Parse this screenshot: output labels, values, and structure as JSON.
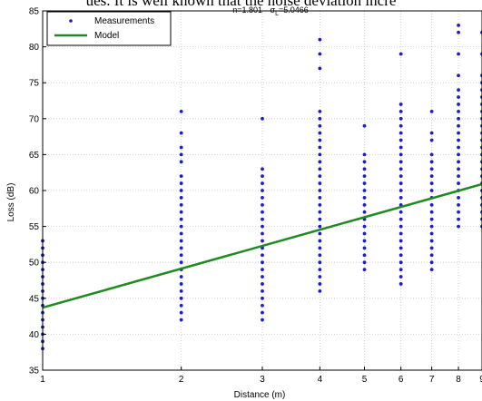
{
  "page_header_fragment": "ues. It is well known that the noise deviation incre",
  "colors": {
    "measurements": "#1c1cc8",
    "model": "#1f8a1f",
    "grid": "#c8c8c8",
    "axis": "#000000"
  },
  "chart_data": {
    "type": "scatter",
    "title": "n=1.801  σL=5.0466",
    "title_n": "n=1.801",
    "title_sigma": "σ",
    "title_sigma_sub": "L",
    "title_sigma_val": "=5.0466",
    "xlabel": "Distance (m)",
    "ylabel": "Loss (dB)",
    "xscale": "log",
    "xlim": [
      1,
      9
    ],
    "ylim": [
      35,
      85
    ],
    "xticks": [
      1,
      2,
      3,
      4,
      5,
      6,
      7,
      8,
      9
    ],
    "yticks": [
      35,
      40,
      45,
      50,
      55,
      60,
      65,
      70,
      75,
      80,
      85
    ],
    "grid": true,
    "legend_position": "top-left",
    "series": [
      {
        "name": "Measurements",
        "kind": "points",
        "points": [
          [
            1,
            38
          ],
          [
            1,
            39
          ],
          [
            1,
            40
          ],
          [
            1,
            41
          ],
          [
            1,
            42
          ],
          [
            1,
            43
          ],
          [
            1,
            44
          ],
          [
            1,
            45
          ],
          [
            1,
            46
          ],
          [
            1,
            47
          ],
          [
            1,
            48
          ],
          [
            1,
            49
          ],
          [
            1,
            50
          ],
          [
            1,
            51
          ],
          [
            1,
            52
          ],
          [
            1,
            53
          ],
          [
            2,
            42
          ],
          [
            2,
            43
          ],
          [
            2,
            44
          ],
          [
            2,
            45
          ],
          [
            2,
            46
          ],
          [
            2,
            47
          ],
          [
            2,
            48
          ],
          [
            2,
            49
          ],
          [
            2,
            50
          ],
          [
            2,
            51
          ],
          [
            2,
            52
          ],
          [
            2,
            53
          ],
          [
            2,
            54
          ],
          [
            2,
            55
          ],
          [
            2,
            56
          ],
          [
            2,
            57
          ],
          [
            2,
            58
          ],
          [
            2,
            59
          ],
          [
            2,
            60
          ],
          [
            2,
            61
          ],
          [
            2,
            62
          ],
          [
            2,
            64
          ],
          [
            2,
            65
          ],
          [
            2,
            66
          ],
          [
            2,
            68
          ],
          [
            2,
            71
          ],
          [
            3,
            42
          ],
          [
            3,
            43
          ],
          [
            3,
            44
          ],
          [
            3,
            45
          ],
          [
            3,
            46
          ],
          [
            3,
            47
          ],
          [
            3,
            48
          ],
          [
            3,
            49
          ],
          [
            3,
            50
          ],
          [
            3,
            51
          ],
          [
            3,
            52
          ],
          [
            3,
            53
          ],
          [
            3,
            54
          ],
          [
            3,
            55
          ],
          [
            3,
            56
          ],
          [
            3,
            57
          ],
          [
            3,
            58
          ],
          [
            3,
            59
          ],
          [
            3,
            60
          ],
          [
            3,
            61
          ],
          [
            3,
            62
          ],
          [
            3,
            63
          ],
          [
            3,
            70
          ],
          [
            4,
            46
          ],
          [
            4,
            47
          ],
          [
            4,
            48
          ],
          [
            4,
            49
          ],
          [
            4,
            50
          ],
          [
            4,
            51
          ],
          [
            4,
            52
          ],
          [
            4,
            53
          ],
          [
            4,
            54
          ],
          [
            4,
            55
          ],
          [
            4,
            56
          ],
          [
            4,
            57
          ],
          [
            4,
            58
          ],
          [
            4,
            59
          ],
          [
            4,
            60
          ],
          [
            4,
            61
          ],
          [
            4,
            62
          ],
          [
            4,
            63
          ],
          [
            4,
            64
          ],
          [
            4,
            65
          ],
          [
            4,
            66
          ],
          [
            4,
            67
          ],
          [
            4,
            68
          ],
          [
            4,
            69
          ],
          [
            4,
            70
          ],
          [
            4,
            71
          ],
          [
            4,
            77
          ],
          [
            4,
            79
          ],
          [
            4,
            81
          ],
          [
            5,
            49
          ],
          [
            5,
            50
          ],
          [
            5,
            51
          ],
          [
            5,
            52
          ],
          [
            5,
            53
          ],
          [
            5,
            54
          ],
          [
            5,
            55
          ],
          [
            5,
            56
          ],
          [
            5,
            57
          ],
          [
            5,
            58
          ],
          [
            5,
            59
          ],
          [
            5,
            60
          ],
          [
            5,
            61
          ],
          [
            5,
            62
          ],
          [
            5,
            63
          ],
          [
            5,
            64
          ],
          [
            5,
            65
          ],
          [
            5,
            69
          ],
          [
            6,
            47
          ],
          [
            6,
            48
          ],
          [
            6,
            49
          ],
          [
            6,
            50
          ],
          [
            6,
            51
          ],
          [
            6,
            52
          ],
          [
            6,
            53
          ],
          [
            6,
            54
          ],
          [
            6,
            55
          ],
          [
            6,
            56
          ],
          [
            6,
            57
          ],
          [
            6,
            58
          ],
          [
            6,
            59
          ],
          [
            6,
            60
          ],
          [
            6,
            61
          ],
          [
            6,
            62
          ],
          [
            6,
            63
          ],
          [
            6,
            64
          ],
          [
            6,
            65
          ],
          [
            6,
            66
          ],
          [
            6,
            67
          ],
          [
            6,
            68
          ],
          [
            6,
            69
          ],
          [
            6,
            70
          ],
          [
            6,
            71
          ],
          [
            6,
            72
          ],
          [
            6,
            79
          ],
          [
            7,
            49
          ],
          [
            7,
            50
          ],
          [
            7,
            51
          ],
          [
            7,
            52
          ],
          [
            7,
            53
          ],
          [
            7,
            54
          ],
          [
            7,
            55
          ],
          [
            7,
            56
          ],
          [
            7,
            57
          ],
          [
            7,
            58
          ],
          [
            7,
            59
          ],
          [
            7,
            60
          ],
          [
            7,
            61
          ],
          [
            7,
            62
          ],
          [
            7,
            63
          ],
          [
            7,
            64
          ],
          [
            7,
            65
          ],
          [
            7,
            67
          ],
          [
            7,
            68
          ],
          [
            7,
            71
          ],
          [
            8,
            55
          ],
          [
            8,
            56
          ],
          [
            8,
            57
          ],
          [
            8,
            58
          ],
          [
            8,
            59
          ],
          [
            8,
            60
          ],
          [
            8,
            61
          ],
          [
            8,
            62
          ],
          [
            8,
            63
          ],
          [
            8,
            64
          ],
          [
            8,
            65
          ],
          [
            8,
            66
          ],
          [
            8,
            67
          ],
          [
            8,
            68
          ],
          [
            8,
            69
          ],
          [
            8,
            70
          ],
          [
            8,
            71
          ],
          [
            8,
            72
          ],
          [
            8,
            73
          ],
          [
            8,
            74
          ],
          [
            8,
            76
          ],
          [
            8,
            79
          ],
          [
            8,
            82
          ],
          [
            8,
            83
          ],
          [
            9,
            55
          ],
          [
            9,
            56
          ],
          [
            9,
            57
          ],
          [
            9,
            58
          ],
          [
            9,
            59
          ],
          [
            9,
            60
          ],
          [
            9,
            61
          ],
          [
            9,
            62
          ],
          [
            9,
            63
          ],
          [
            9,
            64
          ],
          [
            9,
            65
          ],
          [
            9,
            66
          ],
          [
            9,
            67
          ],
          [
            9,
            68
          ],
          [
            9,
            69
          ],
          [
            9,
            70
          ],
          [
            9,
            71
          ],
          [
            9,
            72
          ],
          [
            9,
            73
          ],
          [
            9,
            74
          ],
          [
            9,
            75
          ],
          [
            9,
            76
          ],
          [
            9,
            79
          ],
          [
            9,
            82
          ]
        ]
      },
      {
        "name": "Model",
        "kind": "line",
        "intercept": 43.7,
        "slope_db_per_decade": 18.01
      }
    ]
  }
}
